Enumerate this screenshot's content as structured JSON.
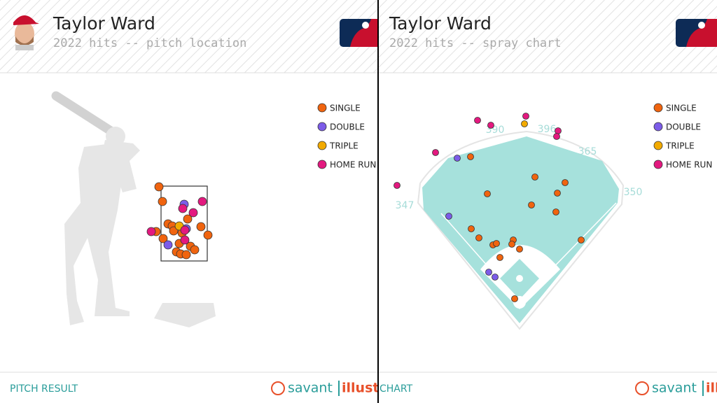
{
  "chart_data": [
    {
      "type": "scatter",
      "title": "Taylor Ward",
      "subtitle": "2022 hits -- pitch location",
      "footer": "PITCH RESULT",
      "brand": [
        "savant",
        "illustra"
      ],
      "xlim": [
        0,
        540
      ],
      "ylim": [
        576,
        0
      ],
      "series": [
        {
          "name": "SINGLE",
          "color": "#f0640f",
          "x": [
            227,
            232,
            268,
            240,
            246,
            248,
            223,
            233,
            287,
            297,
            256,
            272,
            278,
            252,
            258,
            266,
            260
          ],
          "values": [
            267,
            288,
            313,
            320,
            323,
            330,
            331,
            341,
            324,
            336,
            348,
            352,
            357,
            360,
            363,
            364,
            333
          ]
        },
        {
          "name": "DOUBLE",
          "color": "#7c5ce8",
          "x": [
            263,
            240,
            266
          ],
          "values": [
            292,
            350,
            327
          ]
        },
        {
          "name": "TRIPLE",
          "color": "#f2aa00",
          "x": [
            256
          ],
          "values": [
            323
          ]
        },
        {
          "name": "HOME RUN",
          "color": "#e3197f",
          "x": [
            289,
            261,
            276,
            216,
            264,
            264
          ],
          "values": [
            288,
            298,
            304,
            331,
            343,
            329
          ]
        }
      ]
    },
    {
      "type": "scatter",
      "title": "Taylor Ward",
      "subtitle": "2022 hits -- spray chart",
      "footer": "CHART",
      "brand": [
        "savant",
        "illustra"
      ],
      "distances": [
        347,
        390,
        396,
        365,
        350
      ],
      "xlim": [
        540,
        1024
      ],
      "ylim": [
        576,
        0
      ],
      "series": [
        {
          "name": "SINGLE",
          "color": "#f0640f",
          "x": [
            672,
            764,
            807,
            696,
            796,
            759,
            794,
            673,
            684,
            704,
            709,
            733,
            731,
            742,
            714,
            830,
            735
          ],
          "values": [
            224,
            253,
            261,
            277,
            276,
            293,
            303,
            327,
            340,
            350,
            348,
            343,
            349,
            356,
            368,
            343,
            427
          ]
        },
        {
          "name": "DOUBLE",
          "color": "#7c5ce8",
          "x": [
            653,
            641,
            698,
            707
          ],
          "values": [
            226,
            309,
            389,
            396
          ]
        },
        {
          "name": "TRIPLE",
          "color": "#f2aa00",
          "x": [
            749
          ],
          "values": [
            177
          ]
        },
        {
          "name": "HOME RUN",
          "color": "#e3197f",
          "x": [
            682,
            701,
            751,
            797,
            795,
            622,
            567
          ],
          "values": [
            172,
            179,
            166,
            187,
            195,
            218,
            265
          ]
        }
      ]
    }
  ]
}
